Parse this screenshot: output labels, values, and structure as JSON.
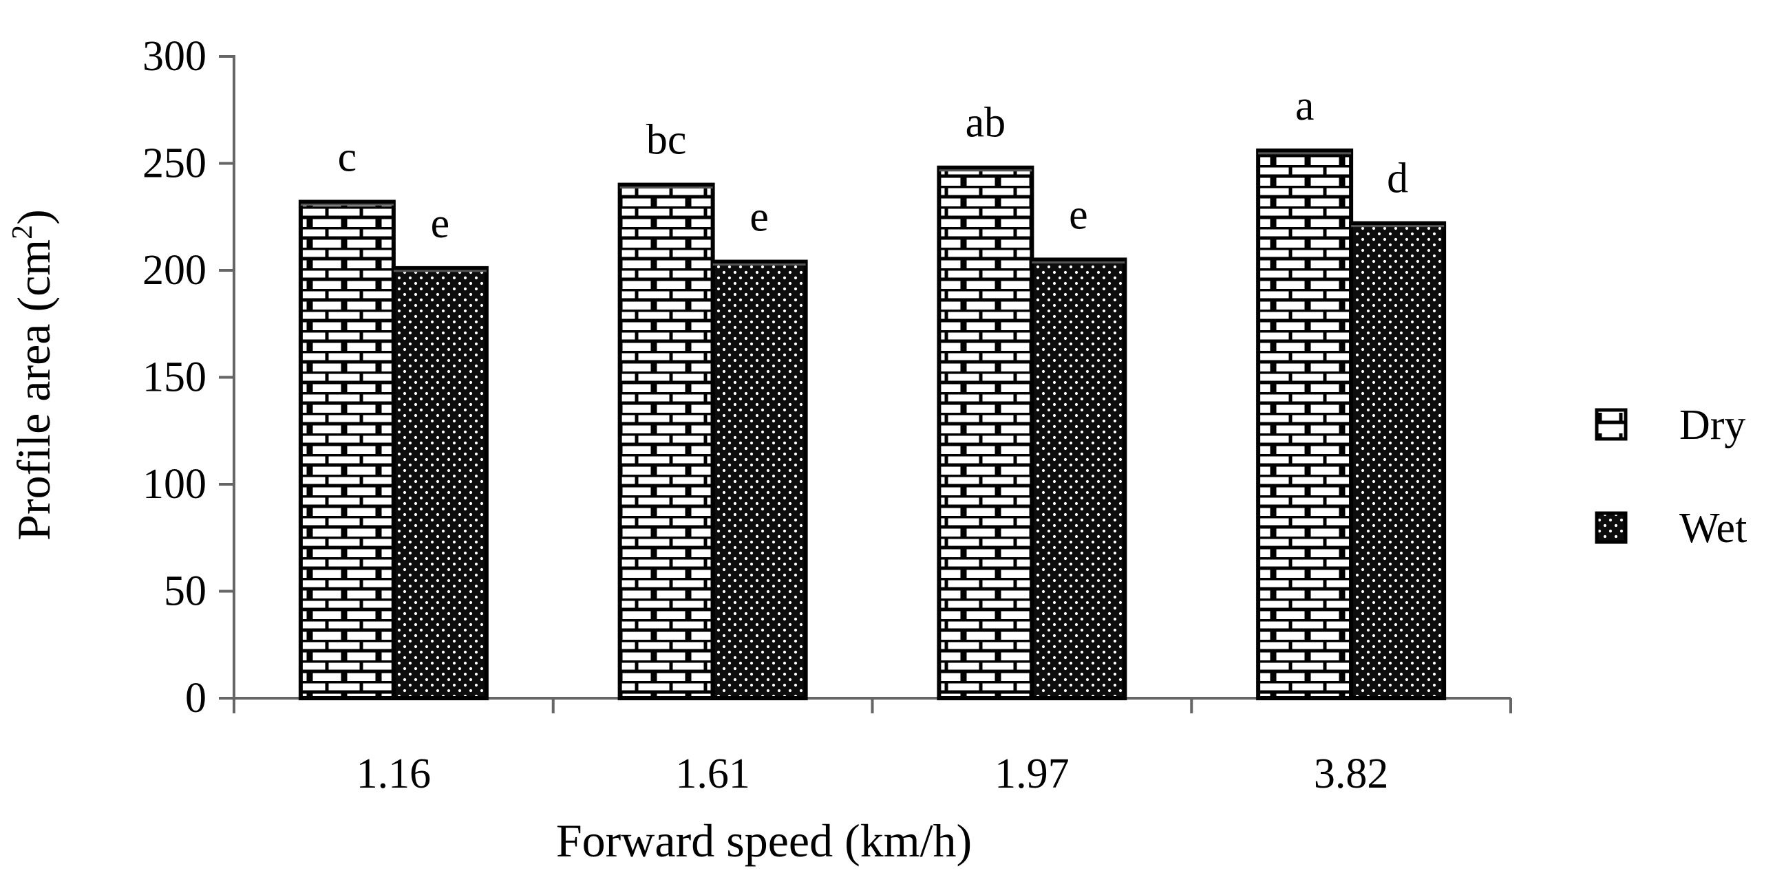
{
  "chart_data": {
    "type": "bar",
    "title": "",
    "xlabel": "Forward speed (km/h)",
    "ylabel_main": "Profile area (cm",
    "ylabel_sup": "2",
    "ylabel_close": ")",
    "ylim": [
      0,
      300
    ],
    "yticks": [
      0,
      50,
      100,
      150,
      200,
      250,
      300
    ],
    "categories": [
      "1.16",
      "1.61",
      "1.97",
      "3.82"
    ],
    "series": [
      {
        "name": "Dry",
        "pattern": "brick",
        "values": [
          232,
          240,
          248,
          256
        ],
        "labels": [
          "c",
          "bc",
          "ab",
          "a"
        ]
      },
      {
        "name": "Wet",
        "pattern": "dots",
        "values": [
          201,
          204,
          205,
          222
        ],
        "labels": [
          "e",
          "e",
          "e",
          "d"
        ]
      }
    ],
    "legend_position": "right",
    "grid": false
  }
}
